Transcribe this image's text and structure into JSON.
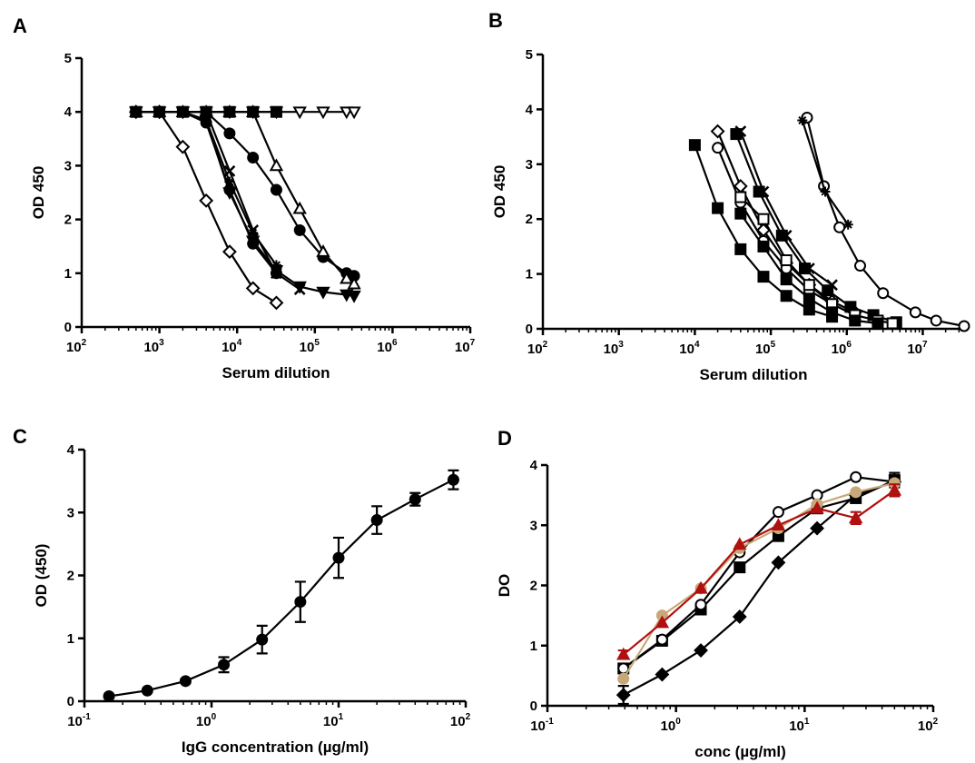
{
  "figure": {
    "panels": [
      {
        "letter": "A"
      },
      {
        "letter": "B"
      },
      {
        "letter": "C"
      },
      {
        "letter": "D"
      }
    ]
  },
  "chart_data": [
    {
      "type": "line",
      "panel": "A",
      "title": "",
      "xlabel": "Serum dilution",
      "ylabel": "OD 450",
      "xscale": "log",
      "xlim": [
        100,
        10000000
      ],
      "ylim": [
        0,
        5
      ],
      "xticks": [
        100,
        1000,
        10000,
        100000,
        1000000,
        10000000
      ],
      "yticks": [
        0,
        1,
        2,
        3,
        4,
        5
      ],
      "grid": false,
      "legend": "none",
      "series": [
        {
          "marker": "diamond-open",
          "color": "#000000",
          "x": [
            500,
            1000,
            2000,
            4000,
            8000,
            16000,
            32000
          ],
          "y": [
            4.0,
            4.0,
            3.35,
            2.35,
            1.4,
            0.72,
            0.45
          ]
        },
        {
          "marker": "circle-filled",
          "color": "#000000",
          "x": [
            500,
            1000,
            2000,
            4000,
            8000,
            16000,
            32000,
            64000,
            128000,
            256000,
            320000
          ],
          "y": [
            4.0,
            4.0,
            4.0,
            4.0,
            3.6,
            3.15,
            2.55,
            1.8,
            1.3,
            1.0,
            0.95
          ]
        },
        {
          "marker": "triangle-down-open",
          "color": "#000000",
          "x": [
            500,
            1000,
            2000,
            4000,
            8000,
            16000,
            32000,
            64000,
            128000,
            256000,
            320000
          ],
          "y": [
            4.0,
            4.0,
            4.0,
            4.0,
            4.0,
            4.0,
            4.0,
            4.0,
            4.0,
            4.0,
            4.0
          ]
        },
        {
          "marker": "triangle-open",
          "color": "#000000",
          "x": [
            500,
            1000,
            2000,
            4000,
            8000,
            16000,
            32000,
            64000,
            128000,
            256000,
            320000
          ],
          "y": [
            4.0,
            4.0,
            4.0,
            4.0,
            4.0,
            4.0,
            3.0,
            2.2,
            1.4,
            0.9,
            0.8
          ]
        },
        {
          "marker": "square-filled",
          "color": "#000000",
          "x": [
            500,
            1000,
            2000,
            4000,
            8000,
            16000,
            32000
          ],
          "y": [
            4.0,
            4.0,
            4.0,
            4.0,
            4.0,
            4.0,
            4.0
          ]
        },
        {
          "marker": "triangle-down-filled",
          "color": "#000000",
          "x": [
            500,
            1000,
            2000,
            4000,
            8000,
            16000,
            32000,
            64000,
            128000,
            256000,
            320000
          ],
          "y": [
            4.0,
            4.0,
            4.0,
            3.85,
            2.5,
            1.6,
            1.05,
            0.75,
            0.65,
            0.6,
            0.58
          ]
        },
        {
          "marker": "circle-filled",
          "color": "#000000",
          "x": [
            1000,
            2000,
            4000,
            8000,
            16000,
            32000
          ],
          "y": [
            4.0,
            4.0,
            3.8,
            2.55,
            1.55,
            1.0
          ]
        },
        {
          "marker": "star",
          "color": "#000000",
          "x": [
            2000,
            4000,
            8000,
            16000,
            32000
          ],
          "y": [
            4.0,
            3.85,
            2.7,
            1.75,
            1.15
          ]
        },
        {
          "marker": "cross",
          "color": "#000000",
          "x": [
            2000,
            4000,
            8000,
            16000,
            32000,
            64000
          ],
          "y": [
            4.0,
            4.0,
            2.9,
            1.8,
            1.0,
            0.7
          ]
        }
      ]
    },
    {
      "type": "line",
      "panel": "B",
      "title": "",
      "xlabel": "Serum dilution",
      "ylabel": "OD 450",
      "xscale": "log",
      "xlim": [
        100,
        35000000
      ],
      "ylim": [
        0,
        5
      ],
      "xticks": [
        100,
        1000,
        10000,
        100000,
        1000000,
        10000000
      ],
      "yticks": [
        0,
        1,
        2,
        3,
        4,
        5
      ],
      "grid": false,
      "legend": "none",
      "series": [
        {
          "marker": "square-filled",
          "color": "#000000",
          "x": [
            10000,
            20000,
            40000,
            80000,
            160000,
            320000,
            640000
          ],
          "y": [
            3.35,
            2.2,
            1.45,
            0.95,
            0.6,
            0.35,
            0.22
          ]
        },
        {
          "marker": "diamond-open",
          "color": "#000000",
          "x": [
            20000,
            40000,
            80000,
            160000,
            320000,
            640000,
            1280000
          ],
          "y": [
            3.6,
            2.6,
            1.8,
            1.2,
            0.8,
            0.5,
            0.3
          ]
        },
        {
          "marker": "circle-open",
          "color": "#000000",
          "x": [
            20000,
            40000,
            80000,
            160000,
            320000,
            640000,
            1280000
          ],
          "y": [
            3.3,
            2.3,
            1.6,
            1.1,
            0.7,
            0.45,
            0.25
          ]
        },
        {
          "marker": "square-filled",
          "color": "#000000",
          "x": [
            35000,
            70000,
            140000,
            280000,
            560000,
            1120000,
            2240000,
            4480000
          ],
          "y": [
            3.55,
            2.5,
            1.7,
            1.1,
            0.7,
            0.4,
            0.25,
            0.12
          ]
        },
        {
          "marker": "cross",
          "color": "#000000",
          "x": [
            40000,
            80000,
            160000,
            320000,
            640000
          ],
          "y": [
            3.6,
            2.5,
            1.7,
            1.1,
            0.8
          ]
        },
        {
          "marker": "square-open",
          "color": "#000000",
          "x": [
            40000,
            80000,
            160000,
            320000,
            640000,
            1280000,
            2560000,
            4000000
          ],
          "y": [
            2.4,
            2.0,
            1.25,
            0.8,
            0.45,
            0.25,
            0.15,
            0.1
          ]
        },
        {
          "marker": "square-filled",
          "color": "#000000",
          "x": [
            40000,
            80000,
            160000,
            320000,
            640000,
            1280000,
            2560000
          ],
          "y": [
            2.1,
            1.5,
            0.9,
            0.55,
            0.3,
            0.15,
            0.1
          ]
        },
        {
          "marker": "circle-open",
          "color": "#000000",
          "x": [
            300000,
            500000,
            800000,
            1500000,
            3000000,
            8000000,
            15000000,
            35000000
          ],
          "y": [
            3.85,
            2.6,
            1.85,
            1.15,
            0.65,
            0.3,
            0.15,
            0.05
          ]
        },
        {
          "marker": "star",
          "color": "#000000",
          "x": [
            260000,
            520000,
            1040000
          ],
          "y": [
            3.8,
            2.5,
            1.9
          ]
        }
      ]
    },
    {
      "type": "line",
      "panel": "C",
      "title": "",
      "xlabel": "IgG concentration (µg/ml)",
      "ylabel": "OD (450)",
      "xscale": "log",
      "xlim": [
        0.1,
        100
      ],
      "ylim": [
        0,
        4
      ],
      "xticks": [
        0.1,
        1,
        10,
        100
      ],
      "yticks": [
        0,
        1,
        2,
        3,
        4
      ],
      "grid": false,
      "legend": "none",
      "series": [
        {
          "marker": "circle-filled",
          "color": "#000000",
          "x": [
            0.156,
            0.3125,
            0.625,
            1.25,
            2.5,
            5,
            10,
            20,
            40,
            80
          ],
          "y": [
            0.08,
            0.17,
            0.32,
            0.58,
            0.98,
            1.58,
            2.28,
            2.88,
            3.21,
            3.52
          ],
          "error": [
            0.02,
            0.02,
            0.03,
            0.12,
            0.22,
            0.32,
            0.32,
            0.22,
            0.1,
            0.15
          ]
        }
      ]
    },
    {
      "type": "line",
      "panel": "D",
      "title": "",
      "xlabel": "conc (µg/ml)",
      "ylabel": "DO",
      "xscale": "log",
      "xlim": [
        0.1,
        100
      ],
      "ylim": [
        0,
        4
      ],
      "xticks": [
        0.1,
        1,
        10,
        100
      ],
      "yticks": [
        0,
        1,
        2,
        3,
        4
      ],
      "grid": false,
      "legend": "none",
      "series": [
        {
          "marker": "diamond-filled",
          "color": "#000000",
          "x": [
            0.39,
            0.78,
            1.56,
            3.125,
            6.25,
            12.5,
            25,
            50
          ],
          "y": [
            0.18,
            0.52,
            0.92,
            1.48,
            2.38,
            2.95,
            3.5,
            3.72
          ],
          "error": [
            0.15,
            0,
            0,
            0,
            0,
            0,
            0,
            0.05
          ]
        },
        {
          "marker": "square-filled",
          "color": "#000000",
          "x": [
            0.39,
            0.78,
            1.56,
            3.125,
            6.25,
            12.5,
            25,
            50
          ],
          "y": [
            0.62,
            1.08,
            1.6,
            2.3,
            2.82,
            3.28,
            3.45,
            3.75
          ],
          "error": [
            0.05,
            0,
            0,
            0,
            0,
            0,
            0,
            0.12
          ]
        },
        {
          "marker": "circle-open",
          "color": "#000000",
          "x": [
            0.39,
            0.78,
            1.56,
            3.125,
            6.25,
            12.5,
            25,
            50
          ],
          "y": [
            0.62,
            1.1,
            1.68,
            2.55,
            3.22,
            3.5,
            3.8,
            3.72
          ],
          "error": [
            0.05,
            0,
            0,
            0,
            0,
            0,
            0,
            0
          ]
        },
        {
          "marker": "circle-filled",
          "color": "#c8a878",
          "x": [
            0.39,
            0.78,
            1.56,
            3.125,
            6.25,
            12.5,
            25,
            50
          ],
          "y": [
            0.45,
            1.5,
            1.95,
            2.62,
            2.95,
            3.35,
            3.55,
            3.7
          ],
          "error": [
            0,
            0,
            0,
            0,
            0,
            0,
            0,
            0
          ]
        },
        {
          "marker": "triangle-filled",
          "color": "#b01010",
          "x": [
            0.39,
            0.78,
            1.56,
            3.125,
            6.25,
            12.5,
            25,
            50
          ],
          "y": [
            0.85,
            1.38,
            1.95,
            2.68,
            3.0,
            3.28,
            3.12,
            3.58
          ],
          "error": [
            0.07,
            0,
            0,
            0,
            0,
            0,
            0.1,
            0.1
          ]
        }
      ]
    }
  ]
}
